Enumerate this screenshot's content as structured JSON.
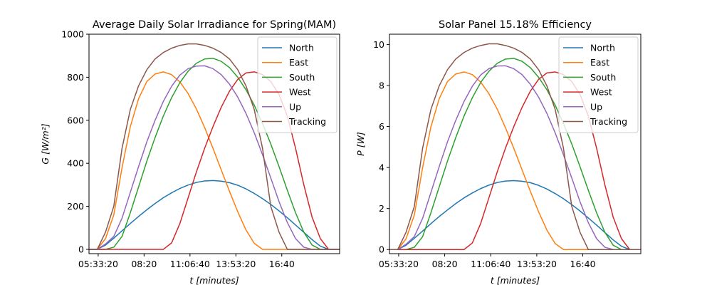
{
  "chart_data": [
    {
      "type": "line",
      "title": "Average Daily Solar Irradiance for Spring(MAM)",
      "xlabel": "t [minutes]",
      "ylabel": "G [W/m²]",
      "xlim": [
        "05:00",
        "20:10"
      ],
      "ylim": [
        -20,
        1000
      ],
      "xticks": [
        "05:33:20",
        "08:20",
        "11:06:40",
        "13:53:20",
        "16:40"
      ],
      "yticks": [
        0,
        200,
        400,
        600,
        800,
        1000
      ],
      "legend_position": "top-right",
      "grid": false,
      "sample_times": [
        "05:00",
        "05:30",
        "06:00",
        "06:30",
        "07:00",
        "07:30",
        "08:00",
        "08:30",
        "09:00",
        "09:30",
        "10:00",
        "10:30",
        "11:00",
        "11:30",
        "12:00",
        "12:30",
        "13:00",
        "13:30",
        "14:00",
        "14:30",
        "15:00",
        "15:30",
        "16:00",
        "16:30",
        "17:00",
        "17:30",
        "18:00",
        "18:30",
        "19:00",
        "19:30",
        "20:00",
        "20:10"
      ],
      "series": [
        {
          "name": "North",
          "color": "#1f77b4",
          "values": [
            0,
            0,
            20,
            52,
            86,
            120,
            153,
            184,
            213,
            240,
            263,
            283,
            299,
            311,
            318,
            320,
            317,
            310,
            298,
            281,
            260,
            236,
            209,
            179,
            147,
            113,
            79,
            45,
            15,
            0,
            0,
            0
          ]
        },
        {
          "name": "East",
          "color": "#ff7f0e",
          "values": [
            0,
            0,
            50,
            160,
            380,
            570,
            700,
            780,
            815,
            825,
            812,
            778,
            724,
            652,
            566,
            470,
            370,
            270,
            175,
            90,
            28,
            0,
            0,
            0,
            0,
            0,
            0,
            0,
            0,
            0,
            0,
            0
          ]
        },
        {
          "name": "South",
          "color": "#2ca02c",
          "values": [
            0,
            0,
            0,
            10,
            60,
            170,
            290,
            410,
            520,
            620,
            705,
            775,
            828,
            865,
            885,
            888,
            874,
            845,
            800,
            742,
            670,
            585,
            490,
            385,
            275,
            170,
            80,
            20,
            0,
            0,
            0,
            0
          ]
        },
        {
          "name": "West",
          "color": "#d62728",
          "values": [
            0,
            0,
            0,
            0,
            0,
            0,
            0,
            0,
            0,
            0,
            30,
            120,
            240,
            360,
            470,
            570,
            660,
            735,
            790,
            820,
            825,
            812,
            780,
            720,
            620,
            470,
            300,
            150,
            50,
            0,
            0,
            0
          ]
        },
        {
          "name": "Up",
          "color": "#9467bd",
          "values": [
            0,
            0,
            25,
            60,
            145,
            265,
            385,
            500,
            600,
            688,
            758,
            810,
            840,
            852,
            853,
            840,
            812,
            768,
            708,
            632,
            542,
            440,
            332,
            222,
            125,
            50,
            10,
            0,
            0,
            0,
            0,
            0
          ]
        },
        {
          "name": "Tracking",
          "color": "#8c564b",
          "values": [
            0,
            0,
            80,
            200,
            470,
            650,
            760,
            835,
            885,
            915,
            935,
            948,
            955,
            955,
            948,
            935,
            915,
            885,
            835,
            760,
            650,
            470,
            200,
            80,
            0,
            0,
            0,
            0,
            0,
            0,
            0,
            0
          ]
        }
      ]
    },
    {
      "type": "line",
      "title": "Solar Panel 15.18% Efficiency",
      "xlabel": "t [minutes]",
      "ylabel": "P [W]",
      "xlim": [
        "05:00",
        "20:10"
      ],
      "ylim": [
        -0.2,
        10.5
      ],
      "xticks": [
        "05:33:20",
        "08:20",
        "11:06:40",
        "13:53:20",
        "16:40"
      ],
      "yticks": [
        0,
        2,
        4,
        6,
        8,
        10
      ],
      "legend_position": "top-right",
      "grid": false,
      "sample_times": [
        "05:00",
        "05:30",
        "06:00",
        "06:30",
        "07:00",
        "07:30",
        "08:00",
        "08:30",
        "09:00",
        "09:30",
        "10:00",
        "10:30",
        "11:00",
        "11:30",
        "12:00",
        "12:30",
        "13:00",
        "13:30",
        "14:00",
        "14:30",
        "15:00",
        "15:30",
        "16:00",
        "16:30",
        "17:00",
        "17:30",
        "18:00",
        "18:30",
        "19:00",
        "19:30",
        "20:00",
        "20:10"
      ],
      "series": [
        {
          "name": "North",
          "color": "#1f77b4",
          "values": [
            0,
            0,
            0.21,
            0.55,
            0.9,
            1.26,
            1.61,
            1.93,
            2.24,
            2.52,
            2.76,
            2.97,
            3.14,
            3.27,
            3.34,
            3.36,
            3.33,
            3.26,
            3.13,
            2.95,
            2.73,
            2.48,
            2.19,
            1.88,
            1.54,
            1.19,
            0.83,
            0.47,
            0.16,
            0,
            0,
            0
          ]
        },
        {
          "name": "East",
          "color": "#ff7f0e",
          "values": [
            0,
            0,
            0.52,
            1.68,
            3.99,
            5.98,
            7.35,
            8.19,
            8.56,
            8.66,
            8.53,
            8.17,
            7.6,
            6.85,
            5.94,
            4.94,
            3.89,
            2.84,
            1.84,
            0.95,
            0.29,
            0,
            0,
            0,
            0,
            0,
            0,
            0,
            0,
            0,
            0,
            0
          ]
        },
        {
          "name": "South",
          "color": "#2ca02c",
          "values": [
            0,
            0,
            0,
            0.11,
            0.63,
            1.79,
            3.05,
            4.31,
            5.46,
            6.51,
            7.4,
            8.14,
            8.69,
            9.08,
            9.29,
            9.32,
            9.18,
            8.87,
            8.4,
            7.79,
            7.04,
            6.14,
            5.15,
            4.04,
            2.89,
            1.79,
            0.84,
            0.21,
            0,
            0,
            0,
            0
          ]
        },
        {
          "name": "West",
          "color": "#d62728",
          "values": [
            0,
            0,
            0,
            0,
            0,
            0,
            0,
            0,
            0,
            0,
            0.32,
            1.26,
            2.52,
            3.78,
            4.94,
            5.99,
            6.93,
            7.72,
            8.3,
            8.61,
            8.66,
            8.53,
            8.19,
            7.56,
            6.51,
            4.94,
            3.15,
            1.58,
            0.53,
            0,
            0,
            0
          ]
        },
        {
          "name": "Up",
          "color": "#9467bd",
          "values": [
            0,
            0,
            0.26,
            0.63,
            1.52,
            2.78,
            4.04,
            5.25,
            6.3,
            7.22,
            7.96,
            8.51,
            8.82,
            8.95,
            8.96,
            8.82,
            8.53,
            8.06,
            7.43,
            6.64,
            5.69,
            4.62,
            3.49,
            2.33,
            1.31,
            0.53,
            0.11,
            0,
            0,
            0,
            0,
            0
          ]
        },
        {
          "name": "Tracking",
          "color": "#8c564b",
          "values": [
            0,
            0,
            0.84,
            2.1,
            4.94,
            6.83,
            7.98,
            8.77,
            9.29,
            9.61,
            9.82,
            9.95,
            10.03,
            10.03,
            9.95,
            9.82,
            9.61,
            9.29,
            8.77,
            7.98,
            6.83,
            4.94,
            2.1,
            0.84,
            0,
            0,
            0,
            0,
            0,
            0,
            0,
            0
          ]
        }
      ]
    }
  ]
}
